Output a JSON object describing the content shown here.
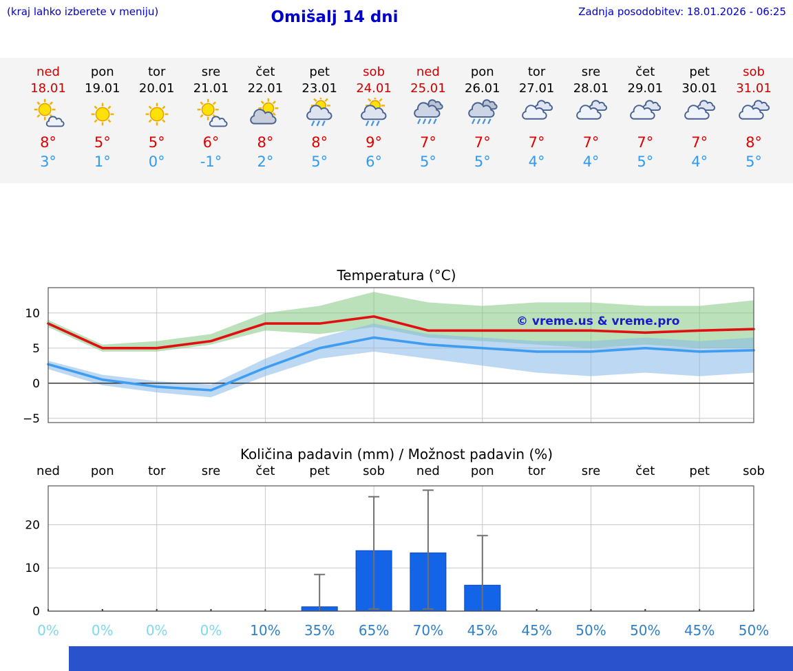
{
  "header": {
    "hint": "(kraj lahko izberete v meniju)",
    "title": "Omišalj 14 dni",
    "last_update": "Zadnja posodobitev: 18.01.2026 - 06:25"
  },
  "forecast": {
    "days": [
      {
        "name": "ned",
        "date": "18.01",
        "weekend": true,
        "icon": "sun-cloud",
        "high": "8°",
        "low": "3°"
      },
      {
        "name": "pon",
        "date": "19.01",
        "weekend": false,
        "icon": "sunny",
        "high": "5°",
        "low": "1°"
      },
      {
        "name": "tor",
        "date": "20.01",
        "weekend": false,
        "icon": "sunny",
        "high": "5°",
        "low": "0°"
      },
      {
        "name": "sre",
        "date": "21.01",
        "weekend": false,
        "icon": "sun-cloud",
        "high": "6°",
        "low": "-1°"
      },
      {
        "name": "čet",
        "date": "22.01",
        "weekend": false,
        "icon": "sun-graycloud",
        "high": "8°",
        "low": "2°"
      },
      {
        "name": "pet",
        "date": "23.01",
        "weekend": false,
        "icon": "sun-rain",
        "high": "8°",
        "low": "5°"
      },
      {
        "name": "sob",
        "date": "24.01",
        "weekend": true,
        "icon": "sun-rain",
        "high": "9°",
        "low": "6°"
      },
      {
        "name": "ned",
        "date": "25.01",
        "weekend": true,
        "icon": "rain",
        "high": "7°",
        "low": "5°"
      },
      {
        "name": "pon",
        "date": "26.01",
        "weekend": false,
        "icon": "rain",
        "high": "7°",
        "low": "5°"
      },
      {
        "name": "tor",
        "date": "27.01",
        "weekend": false,
        "icon": "cloudy",
        "high": "7°",
        "low": "4°"
      },
      {
        "name": "sre",
        "date": "28.01",
        "weekend": false,
        "icon": "cloudy",
        "high": "7°",
        "low": "4°"
      },
      {
        "name": "čet",
        "date": "29.01",
        "weekend": false,
        "icon": "cloudy",
        "high": "7°",
        "low": "5°"
      },
      {
        "name": "pet",
        "date": "30.01",
        "weekend": false,
        "icon": "cloudy",
        "high": "7°",
        "low": "4°"
      },
      {
        "name": "sob",
        "date": "31.01",
        "weekend": true,
        "icon": "cloudy",
        "high": "8°",
        "low": "5°"
      }
    ]
  },
  "chart_data": [
    {
      "type": "line",
      "title": "Temperatura (°C)",
      "categories": [
        "18.01",
        "19.01",
        "20.01",
        "21.01",
        "22.01",
        "23.01",
        "24.01",
        "25.01",
        "26.01",
        "27.01",
        "28.01",
        "29.01",
        "30.01",
        "31.01"
      ],
      "ylim": [
        -5.6,
        13.6
      ],
      "yticks": [
        -5,
        0,
        5,
        10
      ],
      "grid": true,
      "watermark": "© vreme.us & vreme.pro",
      "series": [
        {
          "name": "max temperature",
          "color": "#e01010",
          "values": [
            8.5,
            5,
            5,
            6,
            8.5,
            8.5,
            9.5,
            7.5,
            7.5,
            7.5,
            7.5,
            7.2,
            7.5,
            7.7
          ],
          "band": {
            "color": "#82c882",
            "upper": [
              9,
              5.5,
              6,
              7,
              10,
              11,
              13,
              11.5,
              11,
              11.5,
              11.5,
              11,
              11,
              11.8
            ],
            "lower": [
              8,
              4.5,
              4.5,
              5.5,
              7.5,
              7,
              8,
              6.5,
              6,
              5.5,
              5,
              5.5,
              5,
              5
            ]
          }
        },
        {
          "name": "min temperature",
          "color": "#3e9df0",
          "values": [
            2.7,
            0.5,
            -0.5,
            -1,
            2.2,
            5,
            6.5,
            5.5,
            5,
            4.5,
            4.5,
            5,
            4.5,
            4.7
          ],
          "band": {
            "color": "#86b8e8",
            "upper": [
              3.2,
              1.2,
              0.3,
              -0.2,
              3.5,
              6.5,
              8.5,
              7,
              6.5,
              6,
              6,
              6.5,
              6,
              6.5
            ],
            "lower": [
              2,
              -0.3,
              -1.3,
              -2,
              1,
              3.5,
              4.5,
              3.5,
              2.5,
              1.5,
              1,
              1.5,
              1,
              1.5
            ]
          }
        }
      ]
    },
    {
      "type": "bar",
      "title": "Količina padavin (mm) / Možnost padavin (%)",
      "categories": [
        "ned",
        "pon",
        "tor",
        "sre",
        "čet",
        "pet",
        "sob",
        "ned",
        "pon",
        "tor",
        "sre",
        "čet",
        "pet",
        "sob"
      ],
      "values": [
        0,
        0,
        0,
        0,
        0,
        1,
        14,
        13.5,
        6,
        0,
        0,
        0,
        0,
        0
      ],
      "whisker_high": [
        0,
        0,
        0,
        0,
        0,
        8.5,
        26.5,
        28,
        17.5,
        0,
        0,
        0,
        0,
        0
      ],
      "whisker_low": [
        0,
        0,
        0,
        0,
        0,
        0,
        0.5,
        0.5,
        0,
        0,
        0,
        0,
        0,
        0
      ],
      "ylim": [
        0,
        29
      ],
      "yticks": [
        0,
        10,
        20
      ],
      "grid": true,
      "bar_color": "#1464e8",
      "probabilities": [
        {
          "label": "0%",
          "style": "light"
        },
        {
          "label": "0%",
          "style": "light"
        },
        {
          "label": "0%",
          "style": "light"
        },
        {
          "label": "0%",
          "style": "light"
        },
        {
          "label": "10%",
          "style": "strong"
        },
        {
          "label": "35%",
          "style": "strong"
        },
        {
          "label": "65%",
          "style": "strong"
        },
        {
          "label": "70%",
          "style": "strong"
        },
        {
          "label": "45%",
          "style": "strong"
        },
        {
          "label": "45%",
          "style": "strong"
        },
        {
          "label": "50%",
          "style": "strong"
        },
        {
          "label": "50%",
          "style": "strong"
        },
        {
          "label": "45%",
          "style": "strong"
        },
        {
          "label": "50%",
          "style": "strong"
        }
      ]
    }
  ],
  "colors": {
    "accent_blue": "#0000cc",
    "weekend_red": "#cc0000",
    "high_temp_red": "#e00000",
    "low_temp_blue": "#2f9bf0",
    "strip_bg": "#f4f4f4",
    "footer_bar": "#2a52cc"
  }
}
